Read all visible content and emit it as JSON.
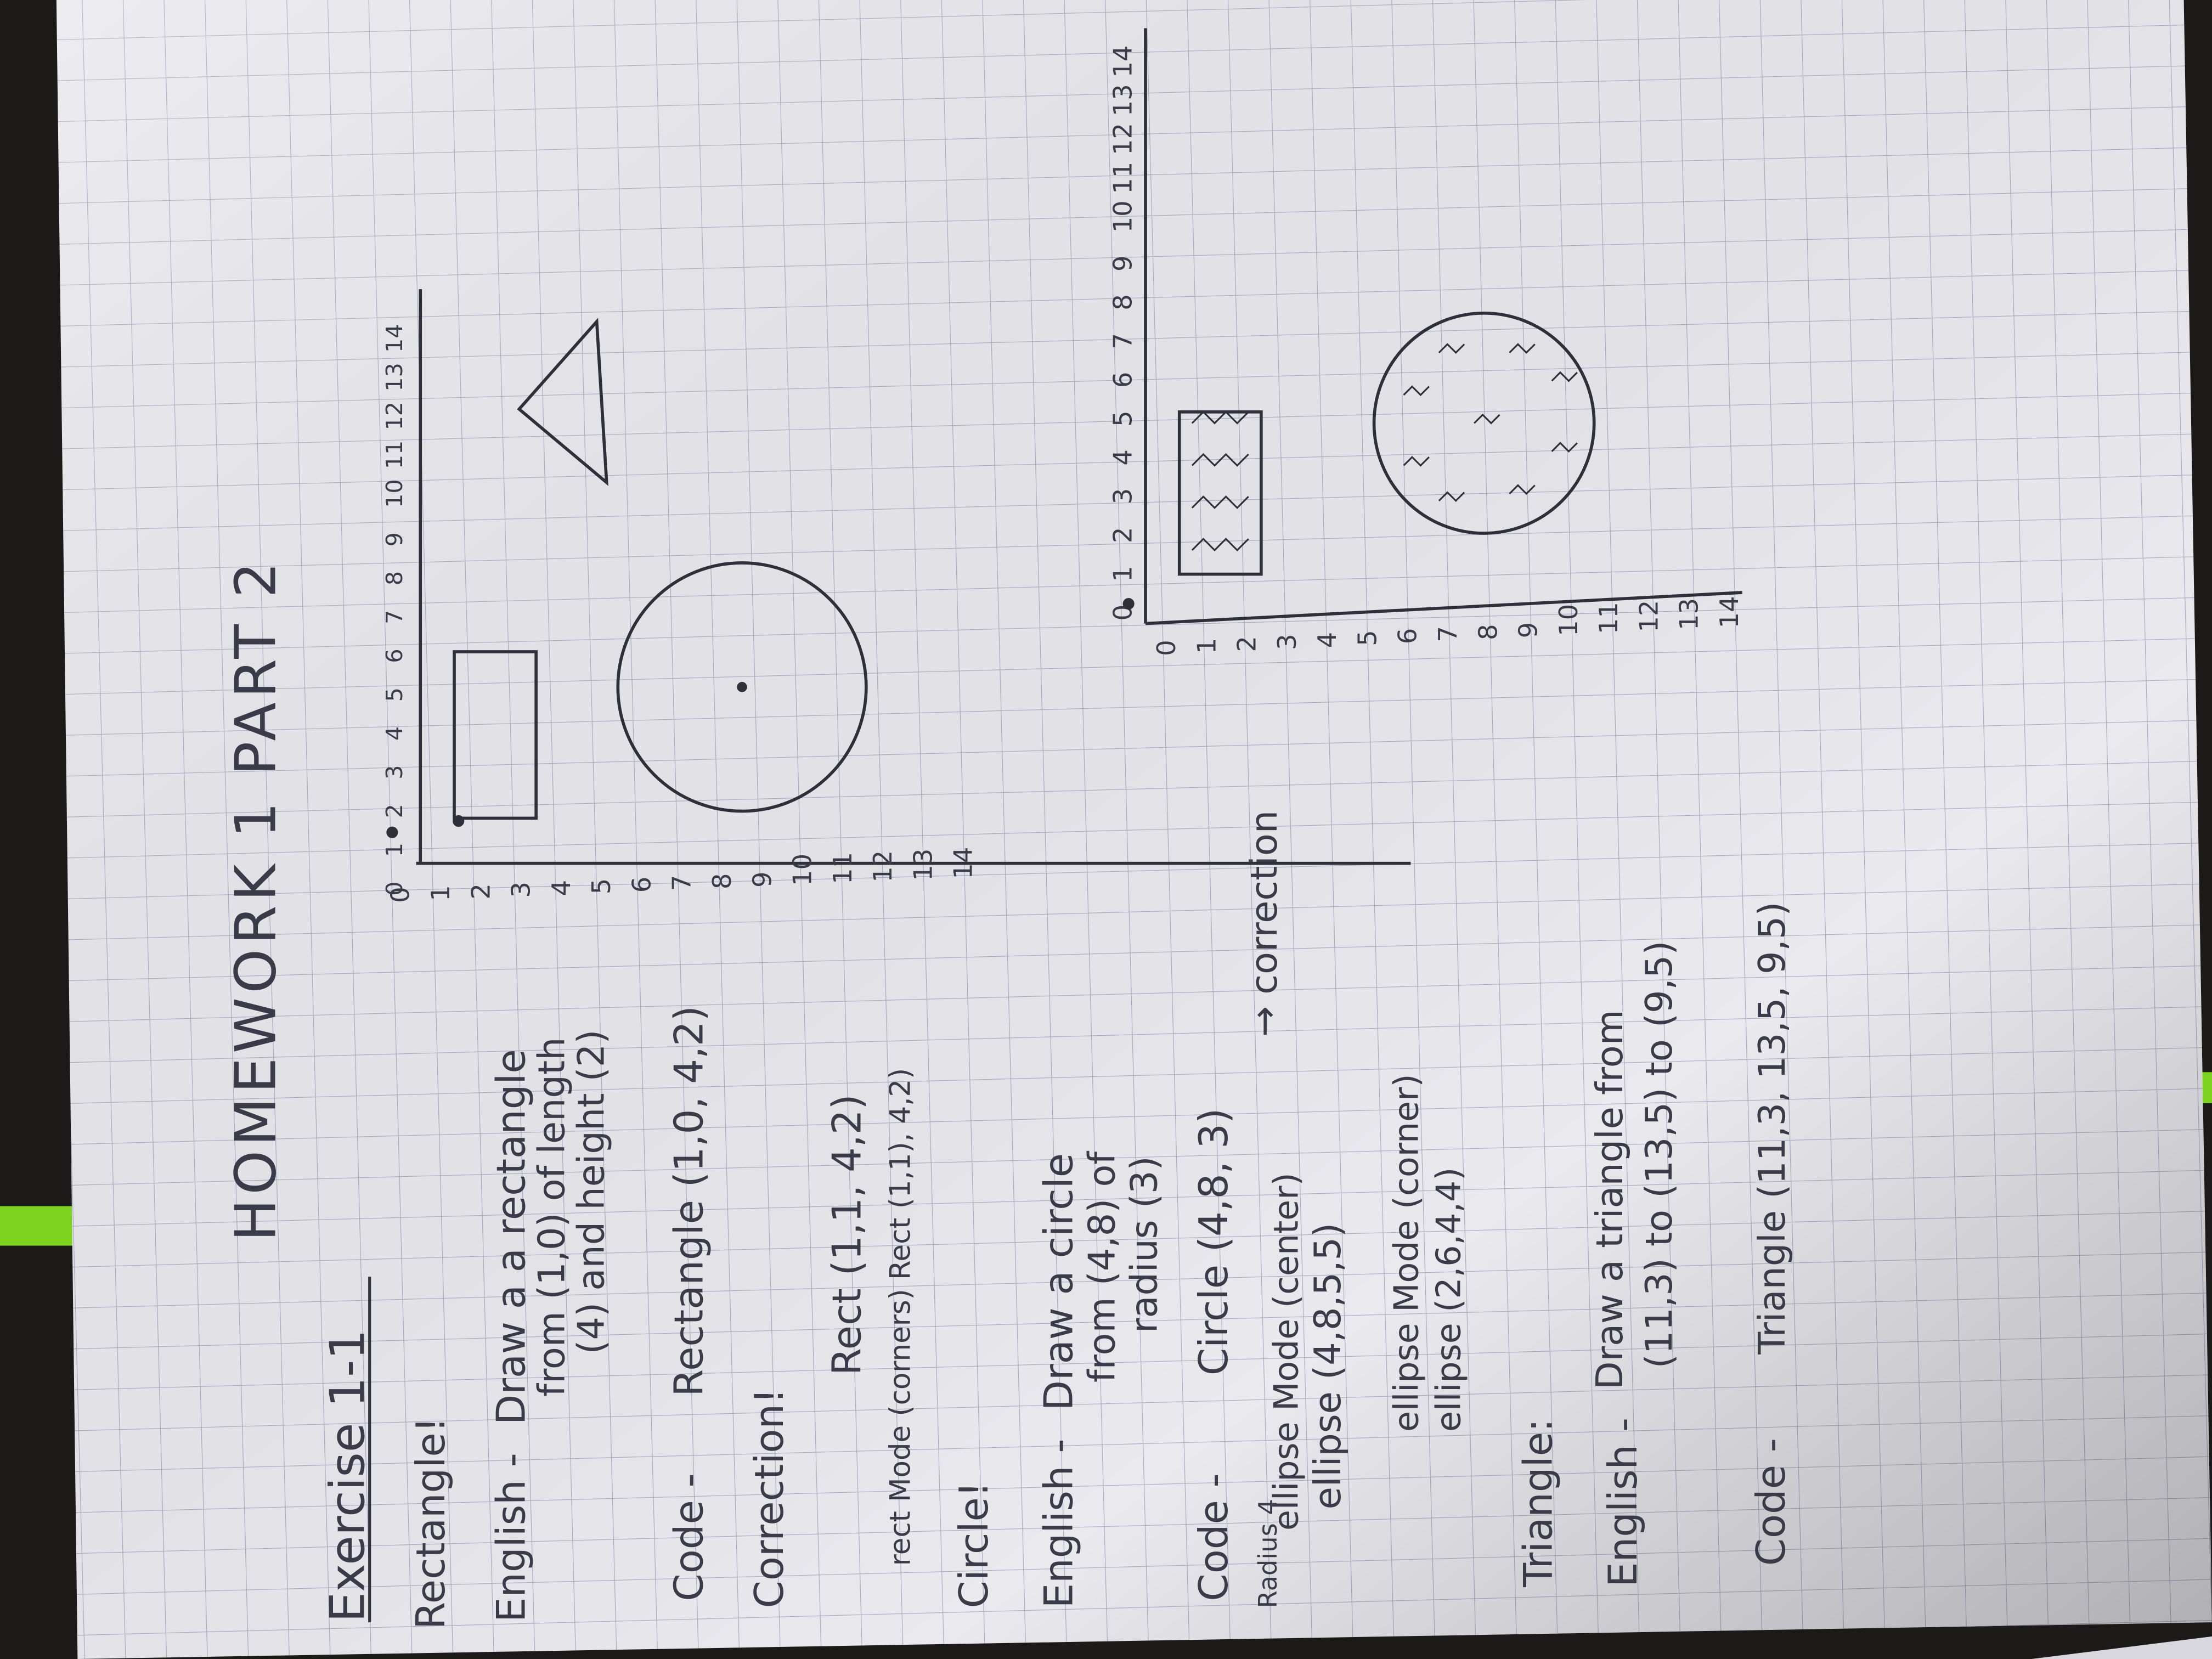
{
  "photo": {
    "subject": "handwritten-homework-on-graph-paper",
    "paper_color": "#e9e9ee",
    "grid_color": "#a9a9c4",
    "ink_color": "#2f2f3a",
    "background_color": "#1c1a18",
    "tape_color": "#7ed321"
  },
  "title": "HOMEWORK 1 PART 2",
  "exercise": "Exercise 1-1",
  "rectangle": {
    "heading": "Rectangle!",
    "english_label": "English -",
    "english_1": "Draw a a rectangle",
    "english_2": "from (1,0) of length",
    "english_3": "(4) and height (2)",
    "code_label": "Code -",
    "code": "Rectangle (1,0, 4,2)",
    "correction_heading": "Correction!",
    "correction_1": "Rect (1,1, 4,2)",
    "correction_2": "rect Mode (corners) Rect (1,1), 4,2)"
  },
  "circle": {
    "heading": "Circle!",
    "english_label": "English -",
    "english_1": "Draw a circle",
    "english_2": "from (4,8) of",
    "english_3": "radius (3)",
    "code_label": "Code -",
    "code": "Circle (4,8, 3)",
    "margin_note": "Radius 4",
    "ellipse_1": "ellipse Mode (center)",
    "ellipse_1_note": "→ correction",
    "ellipse_2": "ellipse (4,8,5,5)",
    "ellipse_3": "ellipse Mode (corner)",
    "ellipse_4": "ellipse (2,6,4,4)"
  },
  "triangle": {
    "heading": "Triangle:",
    "english_label": "English -",
    "english_1": "Draw a triangle from",
    "english_2": "(11,3) to (13,5) to (9,5)",
    "code_label": "Code -",
    "code": "Triangle (11,3, 13,5, 9,5)"
  },
  "graph_top": {
    "x_ticks": [
      "0",
      "1",
      "2",
      "3",
      "4",
      "5",
      "6",
      "7",
      "8",
      "9",
      "10",
      "11",
      "12",
      "13",
      "14"
    ],
    "y_ticks": [
      "0",
      "1",
      "2",
      "3",
      "4",
      "5",
      "6",
      "7",
      "8",
      "9",
      "10",
      "11",
      "12",
      "13",
      "14"
    ]
  },
  "graph_bottom": {
    "x_ticks": [
      "0",
      "1",
      "2",
      "3",
      "4",
      "5",
      "6",
      "7",
      "8",
      "9",
      "10",
      "11",
      "12",
      "13",
      "14"
    ],
    "y_ticks": [
      "0",
      "1",
      "2",
      "3",
      "4",
      "5",
      "6",
      "7",
      "8",
      "9",
      "10",
      "11",
      "12",
      "13",
      "14"
    ]
  }
}
